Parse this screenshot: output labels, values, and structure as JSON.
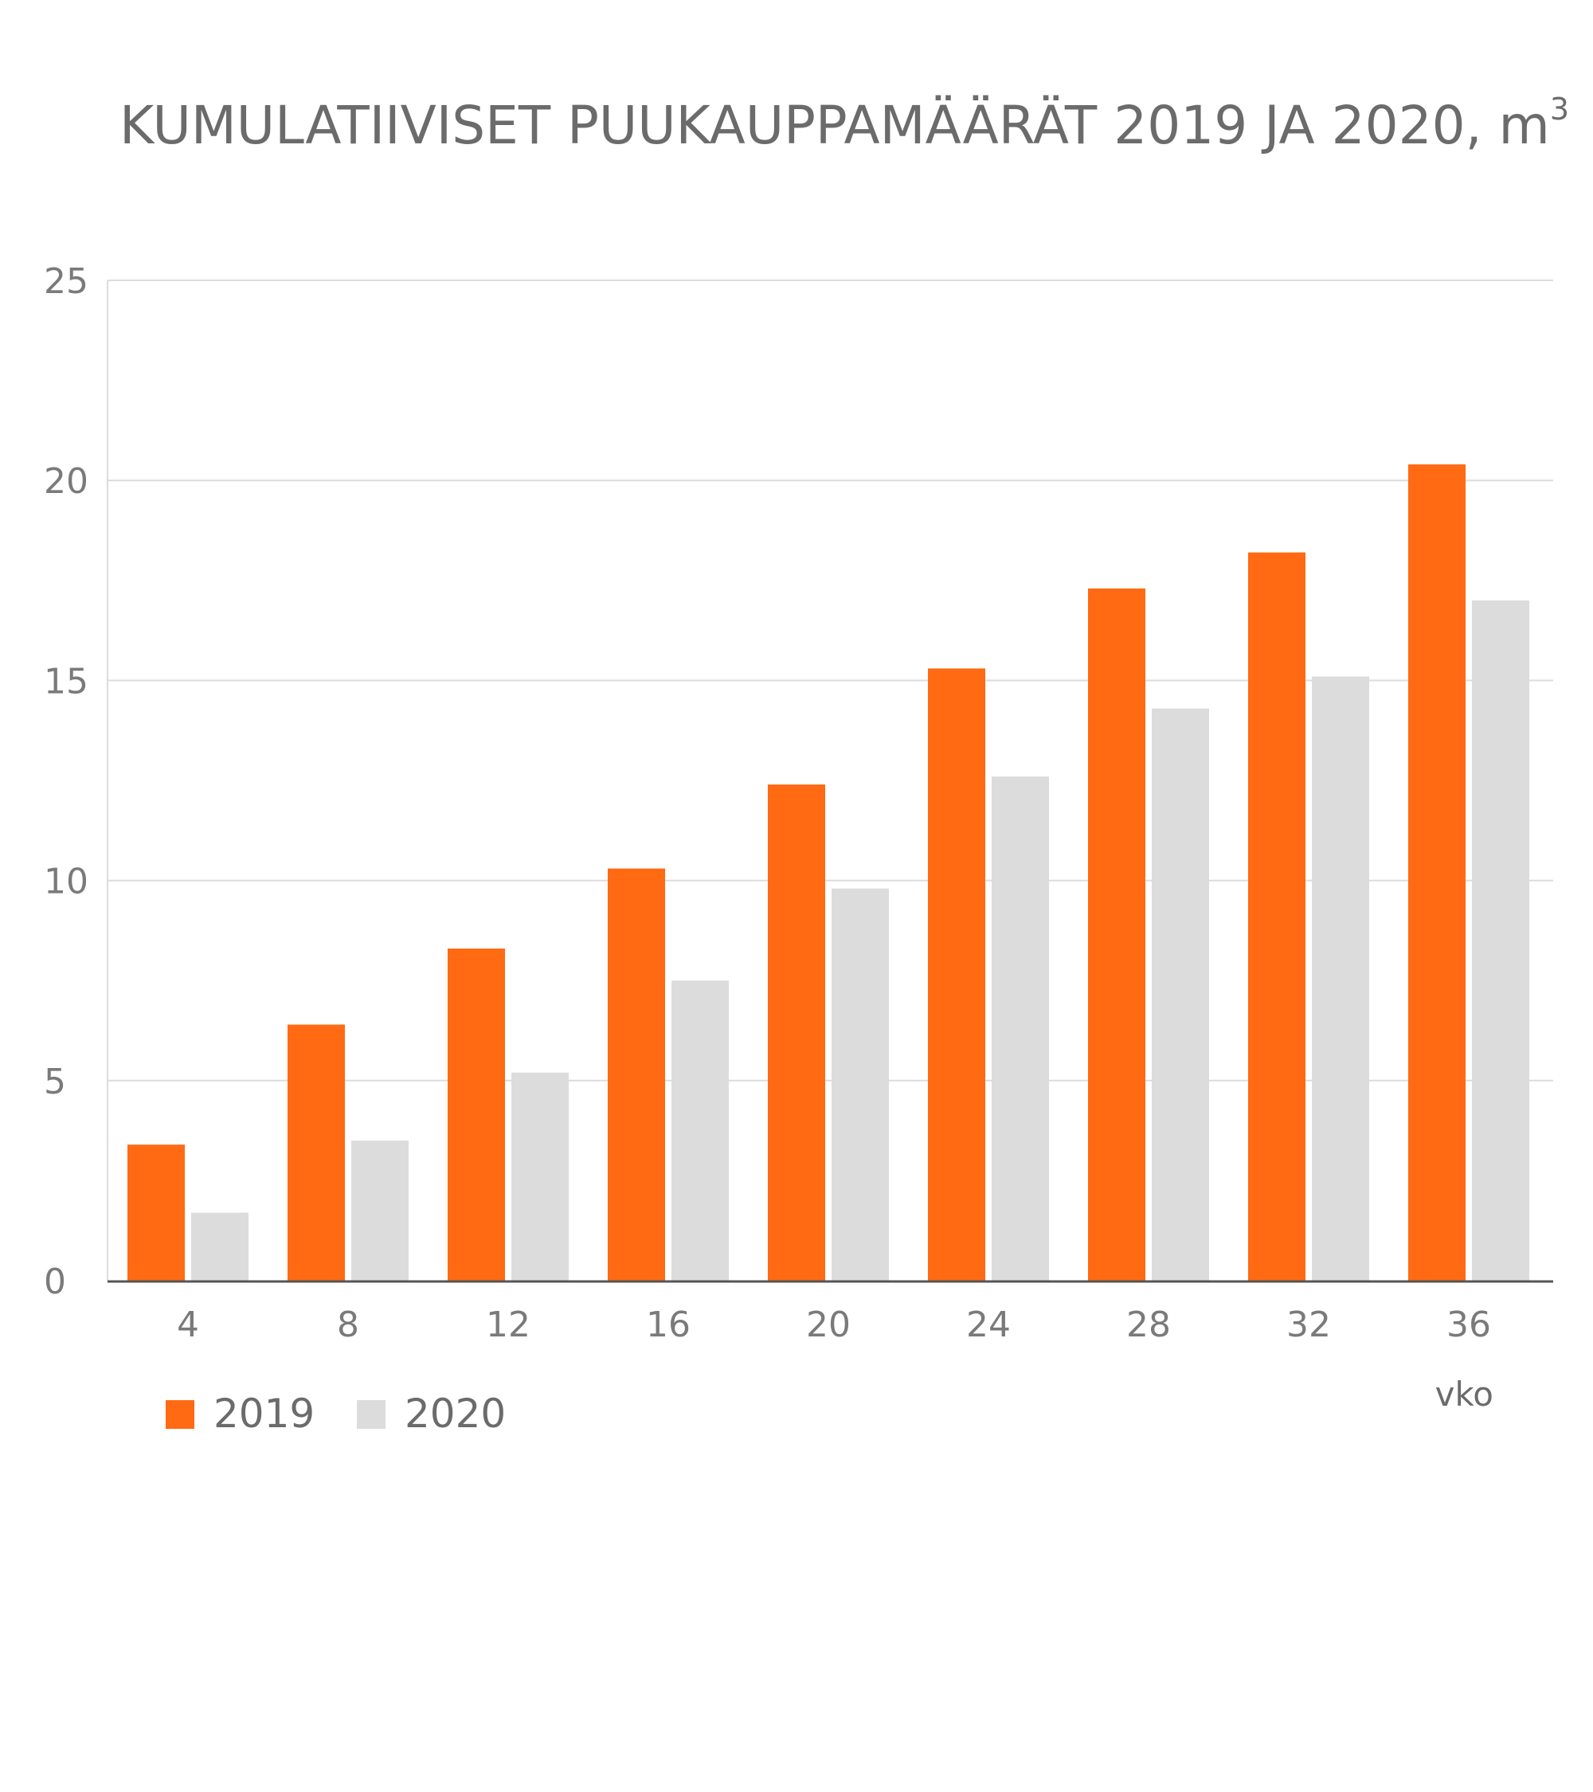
{
  "chart_data": {
    "type": "bar",
    "title": "KUMULATIIVISET PUUKAUPPAMÄÄRÄT 2019 JA 2020, m",
    "title_superscript": "3",
    "categories": [
      "4",
      "8",
      "12",
      "16",
      "20",
      "24",
      "28",
      "32",
      "36"
    ],
    "series": [
      {
        "name": "2019",
        "color": "#ff6a13",
        "values": [
          3.4,
          6.4,
          8.3,
          10.3,
          12.4,
          15.3,
          17.3,
          18.2,
          20.4
        ]
      },
      {
        "name": "2020",
        "color": "#dcdcdc",
        "values": [
          1.7,
          3.5,
          5.2,
          7.5,
          9.8,
          12.6,
          14.3,
          15.1,
          17.0
        ]
      }
    ],
    "xlabel": "vko",
    "ylabel": "",
    "ylim": [
      0,
      25
    ],
    "yticks": [
      "0",
      "5",
      "10",
      "15",
      "20",
      "25"
    ],
    "grid": true,
    "legend_position": "bottom-left"
  }
}
